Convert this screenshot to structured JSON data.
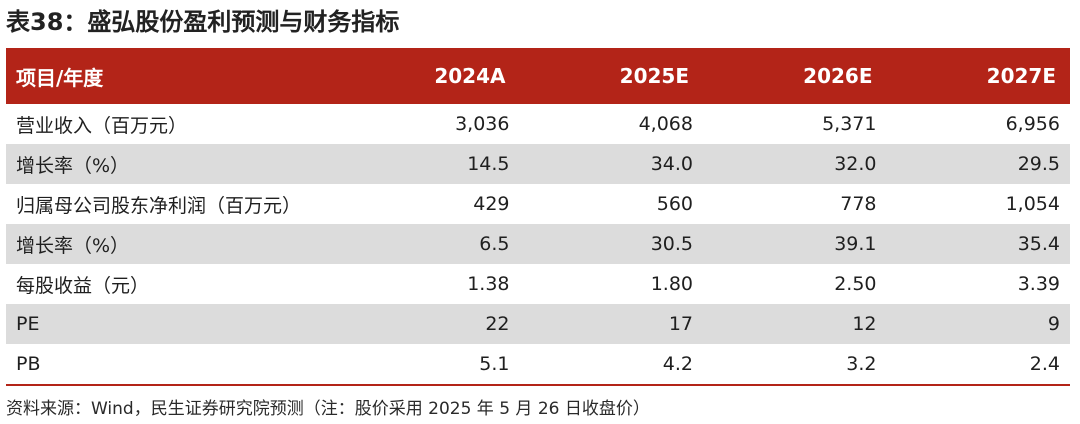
{
  "title": "表38：盛弘股份盈利预测与财务指标",
  "header": {
    "label": "项目/年度",
    "years": [
      "2024A",
      "2025E",
      "2026E",
      "2027E"
    ]
  },
  "rows": [
    {
      "label": "营业收入（百万元）",
      "values": [
        "3,036",
        "4,068",
        "5,371",
        "6,956"
      ]
    },
    {
      "label": "增长率（%）",
      "values": [
        "14.5",
        "34.0",
        "32.0",
        "29.5"
      ]
    },
    {
      "label": "归属母公司股东净利润（百万元）",
      "values": [
        "429",
        "560",
        "778",
        "1,054"
      ]
    },
    {
      "label": "增长率（%）",
      "values": [
        "6.5",
        "30.5",
        "39.1",
        "35.4"
      ]
    },
    {
      "label": "每股收益（元）",
      "values": [
        "1.38",
        "1.80",
        "2.50",
        "3.39"
      ]
    },
    {
      "label": "PE",
      "values": [
        "22",
        "17",
        "12",
        "9"
      ]
    },
    {
      "label": "PB",
      "values": [
        "5.1",
        "4.2",
        "3.2",
        "2.4"
      ]
    }
  ],
  "source": "资料来源：Wind，民生证券研究院预测（注：股价采用 2025 年 5 月 26 日收盘价）",
  "colors": {
    "header_bg": "#b32418",
    "shaded_row": "#dcdcdc"
  }
}
